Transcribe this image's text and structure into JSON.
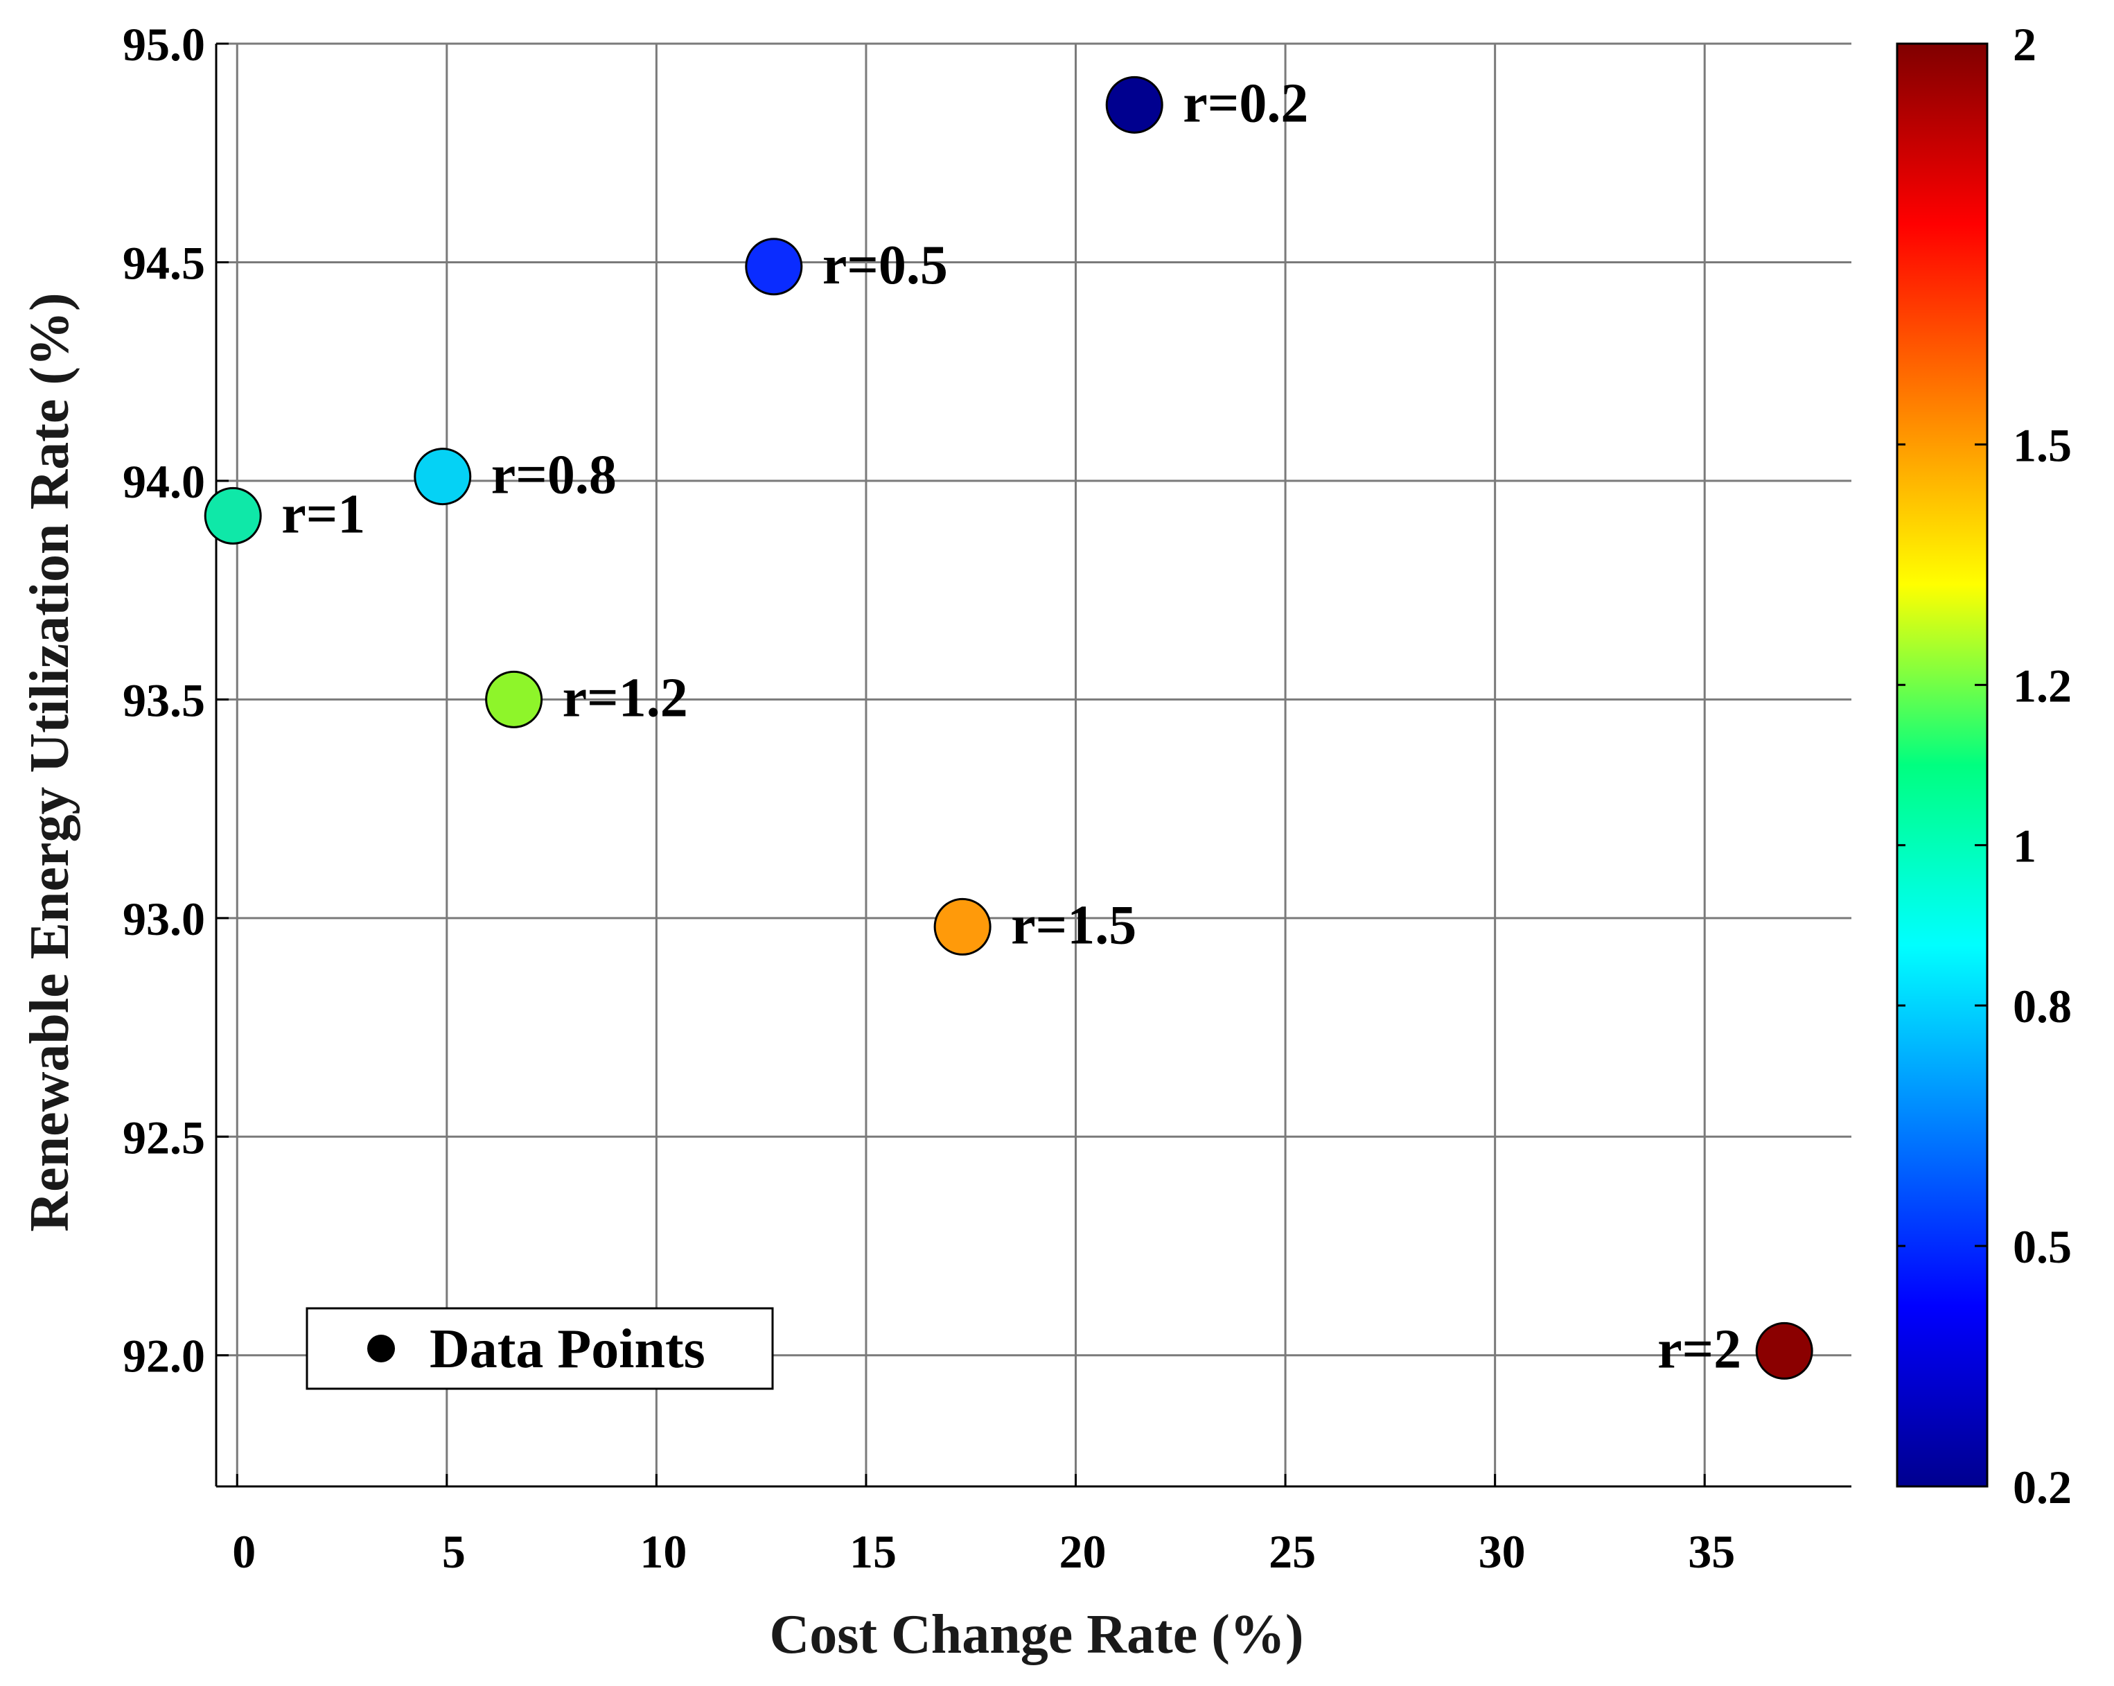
{
  "chart_data": {
    "type": "scatter",
    "title": "",
    "xlabel": "Cost Change Rate (%)",
    "ylabel": "Renewable Energy Utilization Rate (%)",
    "xlim": [
      -0.5,
      38.5
    ],
    "ylim": [
      91.7,
      95.0
    ],
    "xticks": [
      0,
      5,
      10,
      15,
      20,
      25,
      30,
      35
    ],
    "xtick_labels": [
      "0",
      "5",
      "10",
      "15",
      "20",
      "25",
      "30",
      "35"
    ],
    "yticks": [
      92.0,
      92.5,
      93.0,
      93.5,
      94.0,
      94.5,
      95.0
    ],
    "ytick_labels": [
      "92.0",
      "92.5",
      "93.0",
      "93.5",
      "94.0",
      "94.5",
      "95.0"
    ],
    "grid": true,
    "points": [
      {
        "label": "r=0.2",
        "r": 0.2,
        "x": 21.4,
        "y": 94.86,
        "color": "#00008f",
        "label_side": "right"
      },
      {
        "label": "r=0.5",
        "r": 0.5,
        "x": 12.8,
        "y": 94.49,
        "color": "#0a2cff",
        "label_side": "right"
      },
      {
        "label": "r=0.8",
        "r": 0.8,
        "x": 4.9,
        "y": 94.01,
        "color": "#05d2f5",
        "label_side": "right"
      },
      {
        "label": "r=1",
        "r": 1,
        "x": -0.1,
        "y": 93.92,
        "color": "#0fe8a8",
        "label_side": "right"
      },
      {
        "label": "r=1.2",
        "r": 1.2,
        "x": 6.6,
        "y": 93.5,
        "color": "#8ef52a",
        "label_side": "right"
      },
      {
        "label": "r=1.5",
        "r": 1.5,
        "x": 17.3,
        "y": 92.98,
        "color": "#ff9a0a",
        "label_side": "right"
      },
      {
        "label": "r=2",
        "r": 2,
        "x": 36.9,
        "y": 92.01,
        "color": "#8b0000",
        "label_side": "left"
      }
    ],
    "legend": {
      "entries": [
        "Data Points"
      ],
      "placement": "bottom-left"
    },
    "colorbar": {
      "range": [
        0.2,
        2
      ],
      "ticks": [
        0.2,
        0.5,
        0.8,
        1,
        1.2,
        1.5,
        2
      ],
      "tick_labels": [
        "0.2",
        "0.5",
        "0.8",
        "1",
        "1.2",
        "1.5",
        "2"
      ],
      "colormap": "jet"
    }
  }
}
